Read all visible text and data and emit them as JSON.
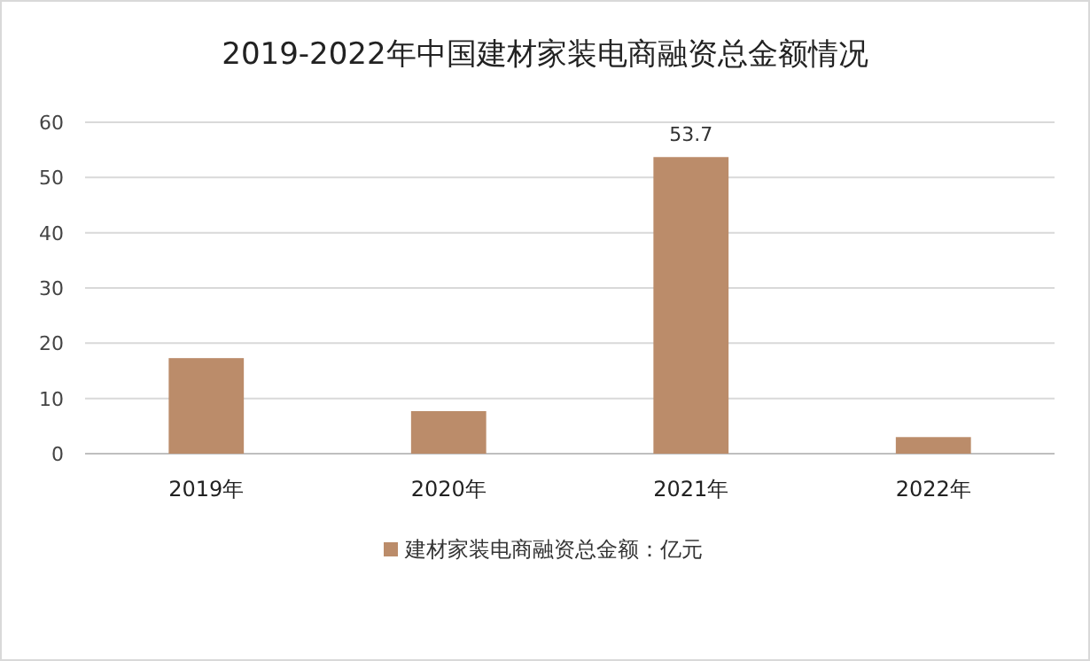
{
  "chart_data": {
    "type": "bar",
    "title": "2019-2022年中国建材家装电商融资总金额情况",
    "categories": [
      "2019年",
      "2020年",
      "2021年",
      "2022年"
    ],
    "series": [
      {
        "name": "建材家装电商融资总金额：亿元",
        "color": "#bb8c6a",
        "values": [
          17.3,
          7.7,
          53.7,
          3.0
        ],
        "value_labels": [
          null,
          null,
          "53.7",
          null
        ]
      }
    ],
    "ylim": [
      0,
      60
    ],
    "yticks": [
      0,
      10,
      20,
      30,
      40,
      50,
      60
    ],
    "grid": "y",
    "legend": "bottom"
  }
}
